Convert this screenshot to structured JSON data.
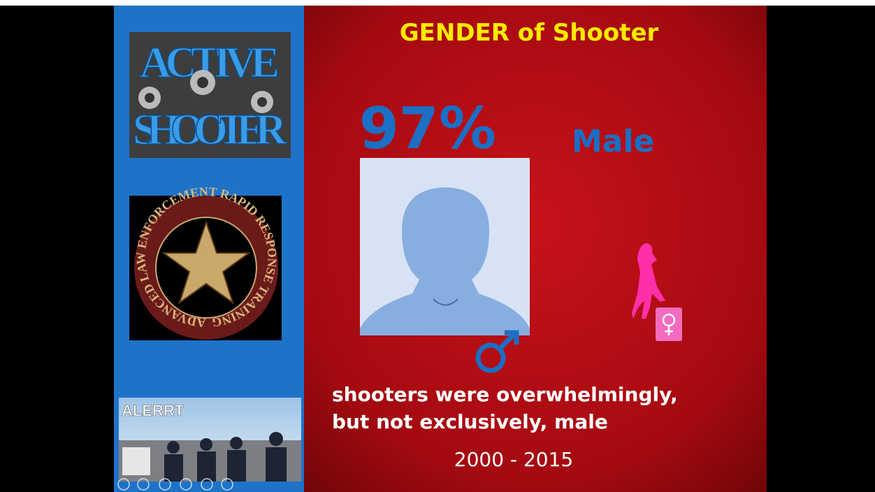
{
  "slide": {
    "title": "GENDER of Shooter",
    "stat": {
      "value": "97%",
      "label": "Male"
    },
    "caption": [
      "shooters were overwhelmingly,",
      "but not exclusively, male"
    ],
    "period": "2000 - 2015"
  },
  "sidebar": {
    "logo_text": [
      "ACTIVE",
      "SHOOTER"
    ],
    "seal_text": "ADVANCED LAW ENFORCEMENT RAPID RESPONSE TRAINING",
    "photo_label": "ALERRT"
  }
}
